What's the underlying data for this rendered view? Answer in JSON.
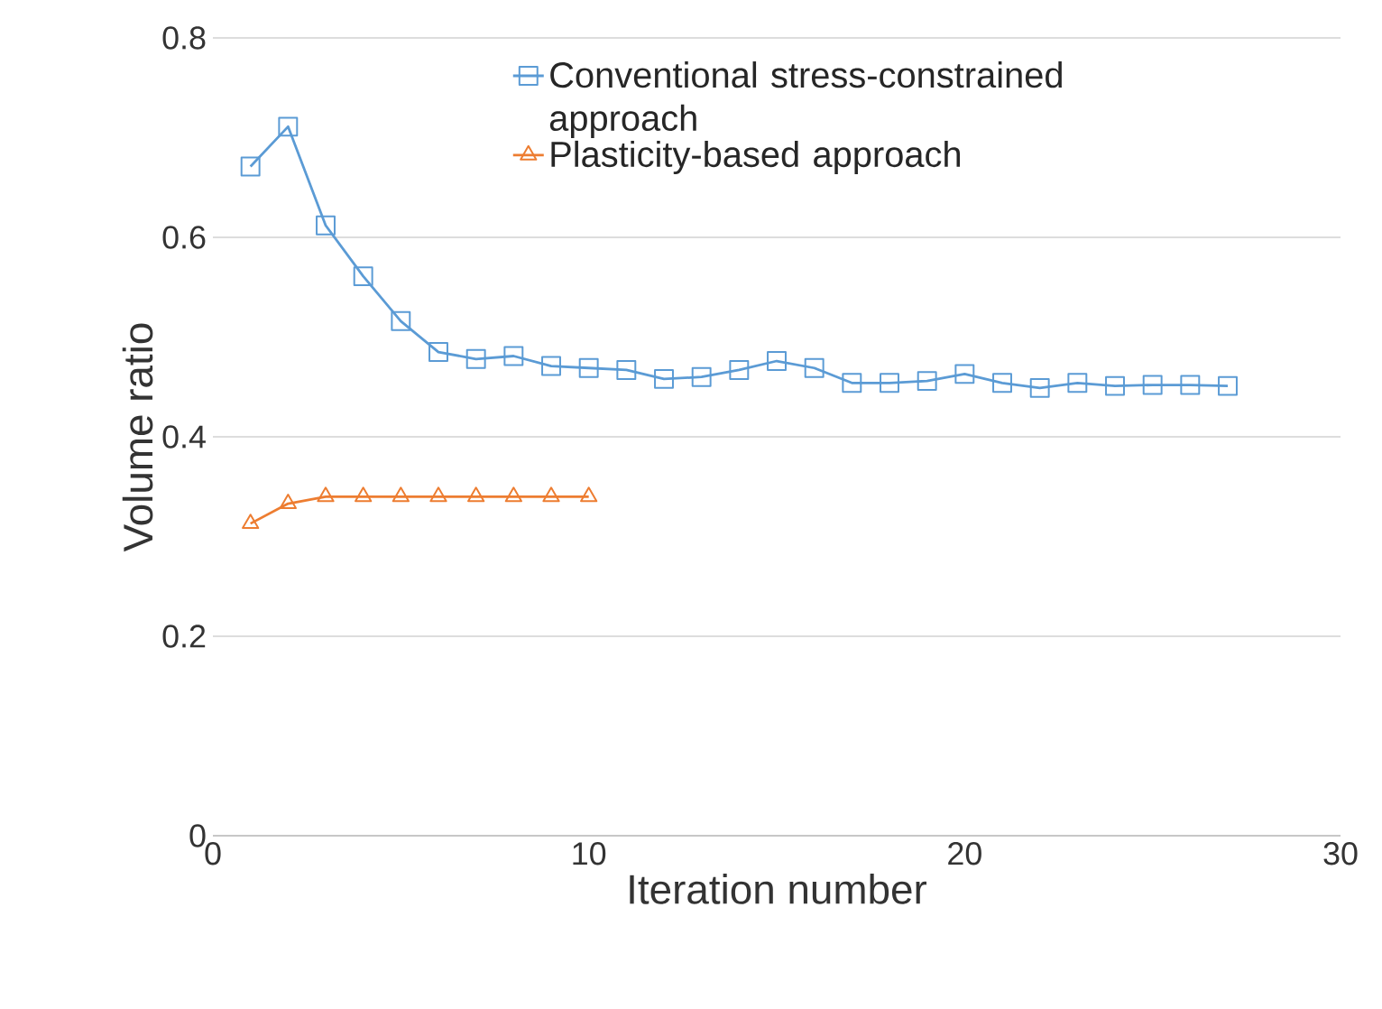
{
  "chart_data": {
    "type": "line",
    "xlabel": "Iteration number",
    "ylabel": "Volume ratio",
    "xlim": [
      0,
      30
    ],
    "xticks": [
      0,
      10,
      20,
      30
    ],
    "ylim": [
      0,
      0.8
    ],
    "yticks": [
      0,
      0.2,
      0.4,
      0.6,
      0.8
    ],
    "grid": "y",
    "legend": "top right",
    "series": [
      {
        "name": "Conventional stress-constrained approach",
        "color": "#5b9bd5",
        "marker": "square",
        "x": [
          1,
          2,
          3,
          4,
          5,
          6,
          7,
          8,
          9,
          10,
          11,
          12,
          13,
          14,
          15,
          16,
          17,
          18,
          19,
          20,
          21,
          22,
          23,
          24,
          25,
          26,
          27
        ],
        "values": [
          0.671,
          0.711,
          0.612,
          0.561,
          0.516,
          0.485,
          0.478,
          0.481,
          0.471,
          0.469,
          0.467,
          0.458,
          0.46,
          0.467,
          0.476,
          0.469,
          0.454,
          0.454,
          0.456,
          0.463,
          0.454,
          0.449,
          0.454,
          0.451,
          0.452,
          0.452,
          0.451
        ]
      },
      {
        "name": "Plasticity-based approach",
        "color": "#ed7d31",
        "marker": "triangle",
        "x": [
          1,
          2,
          3,
          4,
          5,
          6,
          7,
          8,
          9,
          10
        ],
        "values": [
          0.313,
          0.333,
          0.34,
          0.34,
          0.34,
          0.34,
          0.34,
          0.34,
          0.34,
          0.34
        ]
      }
    ]
  }
}
